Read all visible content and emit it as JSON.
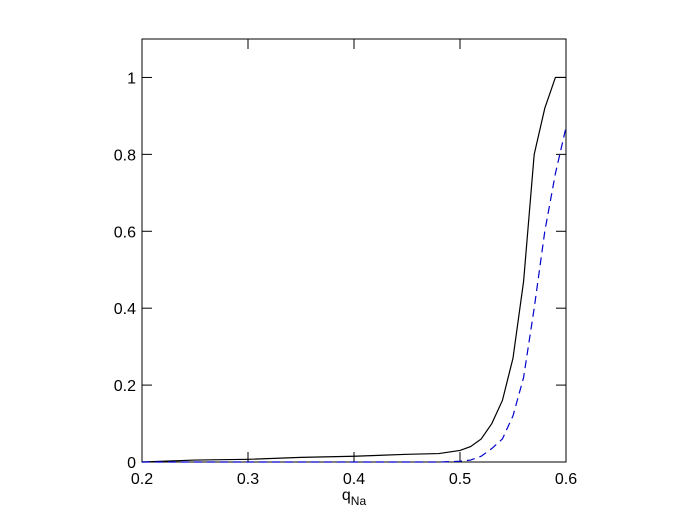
{
  "chart_data": {
    "type": "line",
    "xlabel": {
      "text": "q",
      "subscript": "Na"
    },
    "x": [
      0.2,
      0.25,
      0.3,
      0.35,
      0.4,
      0.45,
      0.48,
      0.5,
      0.51,
      0.52,
      0.53,
      0.54,
      0.55,
      0.56,
      0.57,
      0.58,
      0.59,
      0.6
    ],
    "series": [
      {
        "color": "#000000",
        "dash": false,
        "values": [
          0,
          0.005,
          0.007,
          0.012,
          0.015,
          0.02,
          0.022,
          0.03,
          0.04,
          0.06,
          0.1,
          0.16,
          0.27,
          0.47,
          0.8,
          0.92,
          1.0,
          1.0
        ]
      },
      {
        "color": "#0000cc",
        "dash": true,
        "values": [
          0,
          0,
          0,
          0,
          0,
          0,
          0,
          0.002,
          0.005,
          0.015,
          0.035,
          0.06,
          0.12,
          0.22,
          0.4,
          0.6,
          0.75,
          0.87
        ]
      }
    ],
    "xlim": [
      0.2,
      0.6
    ],
    "xticks": [
      0.2,
      0.3,
      0.4,
      0.5,
      0.6
    ],
    "ylim": [
      0,
      1.1
    ],
    "yticks": [
      0,
      0.2,
      0.4,
      0.6,
      0.8,
      1
    ]
  }
}
